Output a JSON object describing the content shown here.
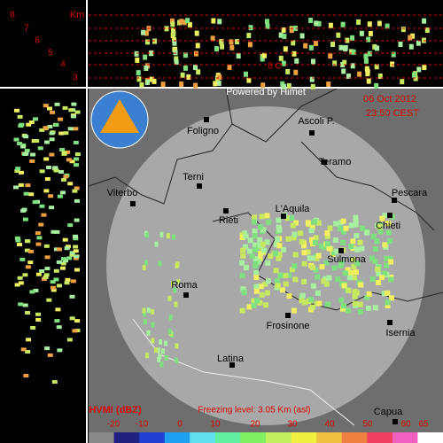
{
  "header": {
    "powered": "Powered by Himet",
    "date": "06 Oct 2012",
    "time": "23:50 CEST"
  },
  "heights": {
    "unit": "Km",
    "levels": [
      8,
      7,
      6,
      5,
      4,
      3
    ]
  },
  "freezing": {
    "marker": "0 C",
    "text": "Freezing level: 3.05 Km (asl)"
  },
  "cities": [
    "Foligno",
    "Ascoli P.",
    "Teramo",
    "Terni",
    "Viterbo",
    "Pescara",
    "L'Aquila",
    "Rieti",
    "Chieti",
    "Sulmona",
    "Roma",
    "Frosinone",
    "Isernia",
    "Latina",
    "Capua"
  ],
  "legend": {
    "title": "HVMI (dBZ)",
    "ticks": [
      -20,
      -10,
      0,
      10,
      20,
      30,
      40,
      50,
      60,
      65
    ]
  }
}
